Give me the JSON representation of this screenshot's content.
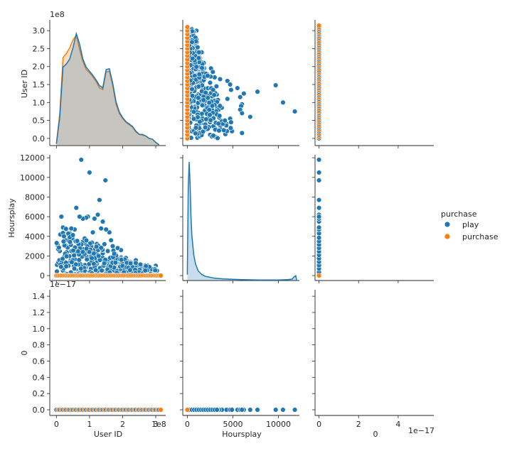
{
  "chart_data": {
    "type": "scatter",
    "title": "",
    "variables": [
      "User ID",
      "Hoursplay",
      "0"
    ],
    "hue": {
      "title": "purchase",
      "levels": [
        {
          "name": "play",
          "color": "#1f77b4"
        },
        {
          "name": "purchase",
          "color": "#ff7f0e"
        }
      ]
    },
    "axes": {
      "user_id": {
        "label": "User ID",
        "range": [
          -20000000,
          330000000
        ],
        "ticks": [
          0,
          100000000,
          200000000,
          300000000
        ],
        "tick_labels": [
          "0",
          "1",
          "2",
          "3"
        ],
        "offset_text": "1e8",
        "y_ticks": [
          0,
          50000000,
          100000000,
          150000000,
          200000000,
          250000000,
          300000000
        ],
        "y_tick_labels": [
          "0.0",
          "0.5",
          "1.0",
          "1.5",
          "2.0",
          "2.5",
          "3.0"
        ]
      },
      "hoursplay": {
        "label": "Hoursplay",
        "range": [
          -500,
          12300
        ],
        "ticks": [
          0,
          5000,
          10000
        ],
        "tick_labels": [
          "0",
          "5000",
          "10000"
        ],
        "y_ticks": [
          0,
          2000,
          4000,
          6000,
          8000,
          10000,
          12000
        ],
        "y_tick_labels": [
          "0",
          "2000",
          "4000",
          "6000",
          "8000",
          "10000",
          "12000"
        ]
      },
      "zero": {
        "label": "0",
        "x_range": [
          -2e-18,
          5.8e-17
        ],
        "x_ticks": [
          0,
          2e-17,
          4e-17
        ],
        "x_tick_labels": [
          "0",
          "2",
          "4"
        ],
        "x_offset_text": "1e−17",
        "y_range": [
          -7e-19,
          1.48e-17
        ],
        "y_ticks": [
          0,
          2e-18,
          4e-18,
          6e-18,
          8e-18,
          1e-17,
          1.2e-17,
          1.4e-17
        ],
        "y_tick_labels": [
          "0.0",
          "0.2",
          "0.4",
          "0.6",
          "0.8",
          "1.0",
          "1.2",
          "1.4"
        ],
        "y_offset_text": "1e−17"
      }
    },
    "diagonal_kde_user_id": {
      "x": [
        0,
        10000000,
        20000000,
        30000000,
        40000000,
        50000000,
        60000000,
        70000000,
        80000000,
        90000000,
        100000000,
        110000000,
        120000000,
        130000000,
        140000000,
        150000000,
        160000000,
        170000000,
        180000000,
        190000000,
        200000000,
        210000000,
        220000000,
        230000000,
        240000000,
        250000000,
        260000000,
        270000000,
        280000000,
        290000000,
        300000000,
        310000000
      ],
      "play_density": [
        0.02,
        0.35,
        0.98,
        1.02,
        1.08,
        1.22,
        1.4,
        1.27,
        1.08,
        0.98,
        0.93,
        0.88,
        0.82,
        0.75,
        0.72,
        0.95,
        0.96,
        0.78,
        0.55,
        0.42,
        0.35,
        0.3,
        0.27,
        0.24,
        0.18,
        0.14,
        0.14,
        0.12,
        0.09,
        0.08,
        0.04,
        0.01
      ],
      "purchase_density": [
        0.03,
        0.4,
        1.1,
        1.15,
        1.22,
        1.32,
        1.38,
        1.2,
        1.05,
        0.95,
        0.91,
        0.86,
        0.8,
        0.72,
        0.7,
        0.92,
        0.93,
        0.75,
        0.52,
        0.4,
        0.34,
        0.29,
        0.26,
        0.23,
        0.17,
        0.14,
        0.13,
        0.12,
        0.09,
        0.08,
        0.04,
        0.01
      ]
    },
    "diagonal_kde_hoursplay": {
      "x": [
        0,
        100,
        200,
        300,
        400,
        500,
        700,
        900,
        1200,
        1600,
        2000,
        3000,
        4000,
        5000,
        6000,
        7000,
        8000,
        9000,
        10000,
        11000,
        11500,
        11700,
        11900,
        12000
      ],
      "play_density": [
        0.05,
        0.78,
        1.0,
        0.82,
        0.55,
        0.38,
        0.22,
        0.14,
        0.08,
        0.05,
        0.035,
        0.02,
        0.014,
        0.01,
        0.008,
        0.006,
        0.005,
        0.005,
        0.005,
        0.007,
        0.012,
        0.03,
        0.04,
        0.0
      ]
    },
    "points_play": [
      {
        "user_id": 300000000,
        "hours": 1000
      },
      {
        "user_id": 295000000,
        "hours": 750
      },
      {
        "user_id": 285000000,
        "hours": 400
      },
      {
        "user_id": 270000000,
        "hours": 600
      },
      {
        "user_id": 260000000,
        "hours": 900
      },
      {
        "user_id": 250000000,
        "hours": 300
      },
      {
        "user_id": 240000000,
        "hours": 1000
      },
      {
        "user_id": 230000000,
        "hours": 1300
      },
      {
        "user_id": 220000000,
        "hours": 1000
      },
      {
        "user_id": 210000000,
        "hours": 1800
      },
      {
        "user_id": 200000000,
        "hours": 1500
      },
      {
        "user_id": 195000000,
        "hours": 2600
      },
      {
        "user_id": 185000000,
        "hours": 2800
      },
      {
        "user_id": 180000000,
        "hours": 2200
      },
      {
        "user_id": 170000000,
        "hours": 3000
      },
      {
        "user_id": 165000000,
        "hours": 3600
      },
      {
        "user_id": 160000000,
        "hours": 4400
      },
      {
        "user_id": 150000000,
        "hours": 4700
      },
      {
        "user_id": 148000000,
        "hours": 9700
      },
      {
        "user_id": 140000000,
        "hours": 5500
      },
      {
        "user_id": 135000000,
        "hours": 4800
      },
      {
        "user_id": 130000000,
        "hours": 7700
      },
      {
        "user_id": 125000000,
        "hours": 6200
      },
      {
        "user_id": 115000000,
        "hours": 5800
      },
      {
        "user_id": 110000000,
        "hours": 4400
      },
      {
        "user_id": 100000000,
        "hours": 10500
      },
      {
        "user_id": 95000000,
        "hours": 6000
      },
      {
        "user_id": 90000000,
        "hours": 5900
      },
      {
        "user_id": 80000000,
        "hours": 5800
      },
      {
        "user_id": 75000000,
        "hours": 11800
      },
      {
        "user_id": 70000000,
        "hours": 6000
      },
      {
        "user_id": 60000000,
        "hours": 6900
      },
      {
        "user_id": 55000000,
        "hours": 4700
      },
      {
        "user_id": 45000000,
        "hours": 4800
      },
      {
        "user_id": 40000000,
        "hours": 4300
      },
      {
        "user_id": 30000000,
        "hours": 4700
      },
      {
        "user_id": 20000000,
        "hours": 4900
      },
      {
        "user_id": 15000000,
        "hours": 6000
      },
      {
        "user_id": 10000000,
        "hours": 2500
      },
      {
        "user_id": 5000000,
        "hours": 1400
      },
      {
        "user_id": 2000000,
        "hours": 1100
      },
      {
        "user_id": 48000000,
        "hours": 3800
      },
      {
        "user_id": 58000000,
        "hours": 3500
      },
      {
        "user_id": 68000000,
        "hours": 3000
      },
      {
        "user_id": 85000000,
        "hours": 3300
      },
      {
        "user_id": 105000000,
        "hours": 3000
      },
      {
        "user_id": 120000000,
        "hours": 2700
      },
      {
        "user_id": 145000000,
        "hours": 3200
      },
      {
        "user_id": 155000000,
        "hours": 2500
      },
      {
        "user_id": 175000000,
        "hours": 1700
      },
      {
        "user_id": 225000000,
        "hours": 700
      },
      {
        "user_id": 245000000,
        "hours": 600
      },
      {
        "user_id": 275000000,
        "hours": 300
      },
      {
        "user_id": 305000000,
        "hours": 500
      },
      {
        "user_id": 35000000,
        "hours": 2000
      },
      {
        "user_id": 65000000,
        "hours": 2400
      },
      {
        "user_id": 92000000,
        "hours": 1900
      },
      {
        "user_id": 112000000,
        "hours": 1600
      },
      {
        "user_id": 132000000,
        "hours": 1800
      },
      {
        "user_id": 162000000,
        "hours": 1400
      },
      {
        "user_id": 185000000,
        "hours": 1200
      },
      {
        "user_id": 205000000,
        "hours": 900
      }
    ],
    "points_purchase_hours": 0,
    "points_zero_value": 0
  },
  "legend": {
    "title": "purchase",
    "items": [
      {
        "label": "play",
        "color": "#1f77b4"
      },
      {
        "label": "purchase",
        "color": "#ff7f0e"
      }
    ]
  }
}
